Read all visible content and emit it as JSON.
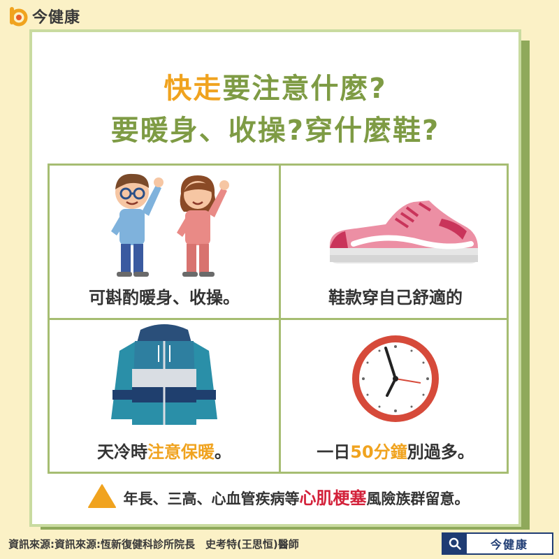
{
  "brand": {
    "name": "今健康"
  },
  "headline": {
    "line1_highlight": "快走",
    "line1_rest": "要注意什麼?",
    "line2": "要暖身、收操?穿什麼鞋?"
  },
  "tips": [
    {
      "caption": "可斟酌暖身、收操。",
      "icon": "stretching-couple"
    },
    {
      "caption": "鞋款穿自己舒適的",
      "icon": "sneaker-icon"
    },
    {
      "caption_before": "天冷時",
      "caption_highlight": "注意保暖",
      "caption_after": "。",
      "icon": "jacket-icon"
    },
    {
      "caption_before": "一日",
      "caption_highlight": "50分鐘",
      "caption_after": "別過多。",
      "icon": "clock-icon"
    }
  ],
  "warning": {
    "before": "年長、三高、心血管疾病等",
    "highlight": "心肌梗塞",
    "after": "風險族群留意。",
    "icon": "warning-triangle-icon"
  },
  "footer": {
    "source": "資訊來源:資訊來源:恆新復健科診所院長　史考特(王思恒)醫師",
    "search_label": "今健康"
  },
  "colors": {
    "background": "#fbf1c6",
    "frame": "#8fa95b",
    "headline_green": "#7e9b44",
    "highlight_orange": "#f0a31f",
    "highlight_red": "#d3213a",
    "brand_navy": "#1f3c73"
  }
}
